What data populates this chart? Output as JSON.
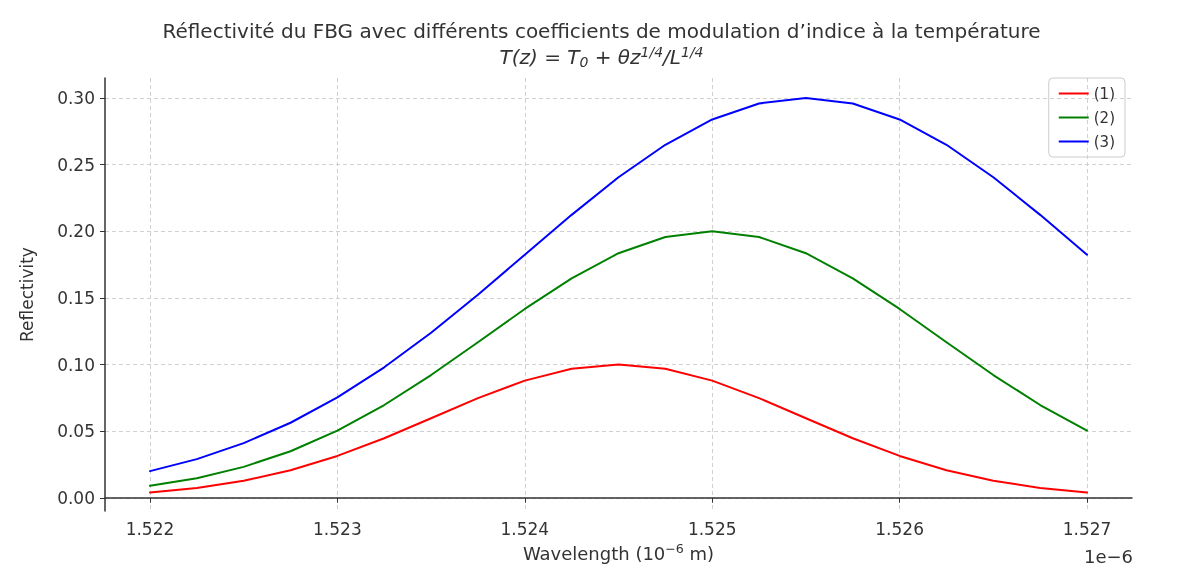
{
  "chart_data": {
    "type": "line",
    "title": "Réflectivité du FBG avec différents coefficients de modulation d’indice à la température",
    "subtitle": "T(z) = T$_{0}$ + θz$^{1/4}$/L$^{1/4}$",
    "xlabel": "Wavelength (10$^{−6}$ m)",
    "ylabel": "Reflectivity",
    "annotations": [
      "1e−6"
    ],
    "x": [
      1.522,
      1.52225,
      1.5225,
      1.52275,
      1.523,
      1.52325,
      1.5235,
      1.52375,
      1.524,
      1.52425,
      1.5245,
      1.52475,
      1.525,
      1.52525,
      1.5255,
      1.52575,
      1.526,
      1.52625,
      1.5265,
      1.52675,
      1.527
    ],
    "series": [
      {
        "name": "(1)",
        "color": "#ff0000",
        "values": [
          0.004,
          0.0074,
          0.0127,
          0.0206,
          0.0314,
          0.0447,
          0.0597,
          0.0748,
          0.0879,
          0.0968,
          0.1,
          0.0968,
          0.0879,
          0.0748,
          0.0597,
          0.0447,
          0.0314,
          0.0206,
          0.0127,
          0.0074,
          0.004
        ]
      },
      {
        "name": "(2)",
        "color": "#008000",
        "values": [
          0.009,
          0.0147,
          0.0232,
          0.0349,
          0.0504,
          0.0696,
          0.0921,
          0.1167,
          0.1417,
          0.1647,
          0.1835,
          0.1957,
          0.2,
          0.1957,
          0.1835,
          0.1647,
          0.1417,
          0.1167,
          0.0921,
          0.0696,
          0.0504
        ]
      },
      {
        "name": "(3)",
        "color": "#0000ff",
        "values": [
          0.02,
          0.029,
          0.041,
          0.0563,
          0.0753,
          0.0979,
          0.1238,
          0.1524,
          0.1824,
          0.2123,
          0.2405,
          0.2649,
          0.2839,
          0.2959,
          0.3,
          0.2959,
          0.2839,
          0.2649,
          0.2405,
          0.2123,
          0.1824
        ]
      }
    ],
    "xlim": [
      1.52176,
      1.52724
    ],
    "xticks": [
      1.522,
      1.523,
      1.524,
      1.525,
      1.526,
      1.527
    ],
    "ylim": [
      -0.01,
      0.315
    ],
    "yticks": [
      {
        "value": 0,
        "label": "0.00"
      },
      {
        "value": 0.05,
        "label": "0.05"
      },
      {
        "value": 0.1,
        "label": "0.10"
      },
      {
        "value": 0.15,
        "label": "0.15"
      },
      {
        "value": 0.2,
        "label": "0.20"
      },
      {
        "value": 0.25,
        "label": "0.25"
      },
      {
        "value": 0.3,
        "label": "0.30"
      }
    ],
    "grid": true,
    "legend": "top right",
    "marker": "none",
    "line_style": "solid"
  }
}
